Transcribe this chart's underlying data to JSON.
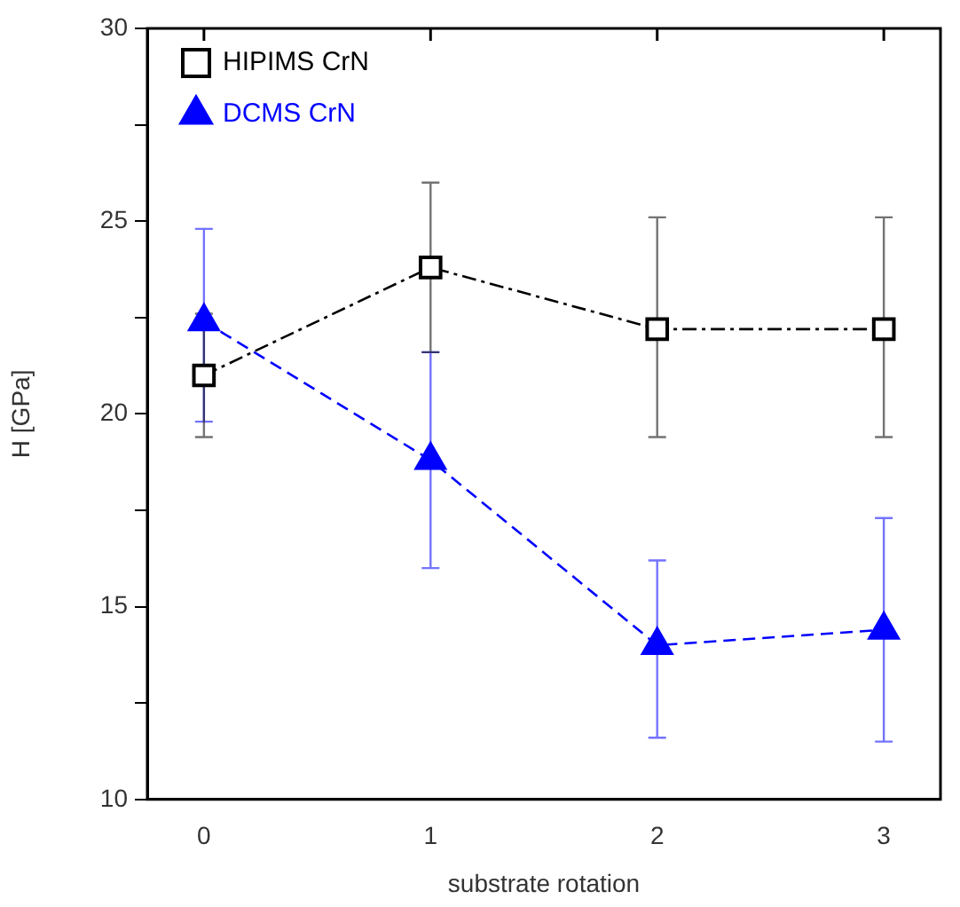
{
  "chart_data": {
    "type": "line",
    "xlabel": "substrate rotation",
    "ylabel": "H [GPa]",
    "x": [
      0,
      1,
      2,
      3
    ],
    "xlim": [
      -0.25,
      3.25
    ],
    "xticks": [
      0,
      1,
      2,
      3
    ],
    "ylim": [
      10,
      30
    ],
    "yticks": [
      10,
      {
        "value": 12.5,
        "label": null
      },
      15,
      {
        "value": 17.5,
        "label": null
      },
      20,
      {
        "value": 22.5,
        "label": null
      },
      25,
      {
        "value": 27.5,
        "label": null
      },
      30
    ],
    "legend": "top left",
    "grid": false,
    "series": [
      {
        "name": "HIPIMS CrN",
        "color": "#000000",
        "values": [
          21.0,
          23.8,
          22.2,
          22.2
        ],
        "errors": [
          1.6,
          [
            21.6,
            26.0
          ],
          [
            19.4,
            25.1
          ],
          [
            19.4,
            25.1
          ]
        ],
        "marker": "square",
        "line_style": "dashdot"
      },
      {
        "name": "DCMS CrN",
        "color": "#0000ff",
        "values": [
          22.4,
          18.8,
          14.0,
          14.4
        ],
        "errors": [
          [
            19.8,
            24.8
          ],
          [
            16.0,
            21.6
          ],
          [
            11.6,
            16.2
          ],
          [
            11.5,
            17.3
          ]
        ],
        "marker": "triangle",
        "line_style": "dashed"
      }
    ]
  }
}
